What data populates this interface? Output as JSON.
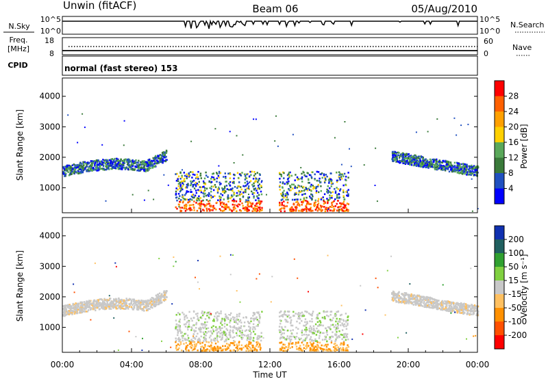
{
  "header": {
    "station": "Unwin (fitACF)",
    "beam": "Beam 06",
    "date": "05/Aug/2010"
  },
  "top_panels": {
    "nsky_label": "N.Sky",
    "nsky_ticks": [
      "10^5",
      "10^0"
    ],
    "nsearch_label": "N.Search",
    "nsearch_ticks": [
      "10^5",
      "10^0"
    ],
    "freq_label": "Freq.",
    "freq_unit": "[MHz]",
    "freq_ticks": [
      "18",
      "8"
    ],
    "nave_label": "Nave",
    "nave_ticks": [
      "60",
      "0"
    ],
    "cpid_label": "CPID",
    "cpid_text": "normal (fast stereo) 153"
  },
  "colors": {
    "power": [
      "#0000ff",
      "#2050c0",
      "#3a7a3a",
      "#5aa85a",
      "#ffd000",
      "#ffa000",
      "#ff6000",
      "#ff0000"
    ],
    "velocity": [
      "#ff0000",
      "#ff5000",
      "#ff9000",
      "#ffc060",
      "#c8c8c8",
      "#80d040",
      "#30a030",
      "#206060",
      "#1030b0"
    ]
  },
  "chart_data": [
    {
      "type": "heatmap",
      "name": "power",
      "ylabel": "Slant Range [km]",
      "yticks": [
        "1000",
        "2000",
        "3000",
        "4000"
      ],
      "ylim": [
        180,
        4600
      ],
      "xlim": [
        0,
        24
      ],
      "colorbar_label": "Power [dB]",
      "colorbar_ticks": [
        "4",
        "8",
        "12",
        "16",
        "20",
        "24",
        "28"
      ],
      "echo_regions": [
        {
          "t0": 0.0,
          "t1": 6.0,
          "r0": 1300,
          "r1": 2200,
          "level": "moderate"
        },
        {
          "t0": 6.5,
          "t1": 11.5,
          "r0": 200,
          "r1": 1500,
          "level": "strong"
        },
        {
          "t0": 12.5,
          "t1": 16.5,
          "r0": 200,
          "r1": 1500,
          "level": "strong"
        },
        {
          "t0": 19.0,
          "t1": 24.0,
          "r0": 1200,
          "r1": 2100,
          "level": "moderate"
        }
      ]
    },
    {
      "type": "heatmap",
      "name": "velocity",
      "ylabel": "Slant Range [km]",
      "yticks": [
        "1000",
        "2000",
        "3000",
        "4000"
      ],
      "ylim": [
        180,
        4600
      ],
      "xlim": [
        0,
        24
      ],
      "colorbar_label": "Velocity [m s⁻¹]",
      "colorbar_ticks": [
        "-200",
        "-100",
        "-50",
        "-15",
        "15",
        "50",
        "100",
        "200"
      ],
      "xticks": [
        "00:00",
        "04:00",
        "08:00",
        "12:00",
        "16:00",
        "20:00",
        "00:00"
      ],
      "xlabel": "Time UT"
    }
  ]
}
